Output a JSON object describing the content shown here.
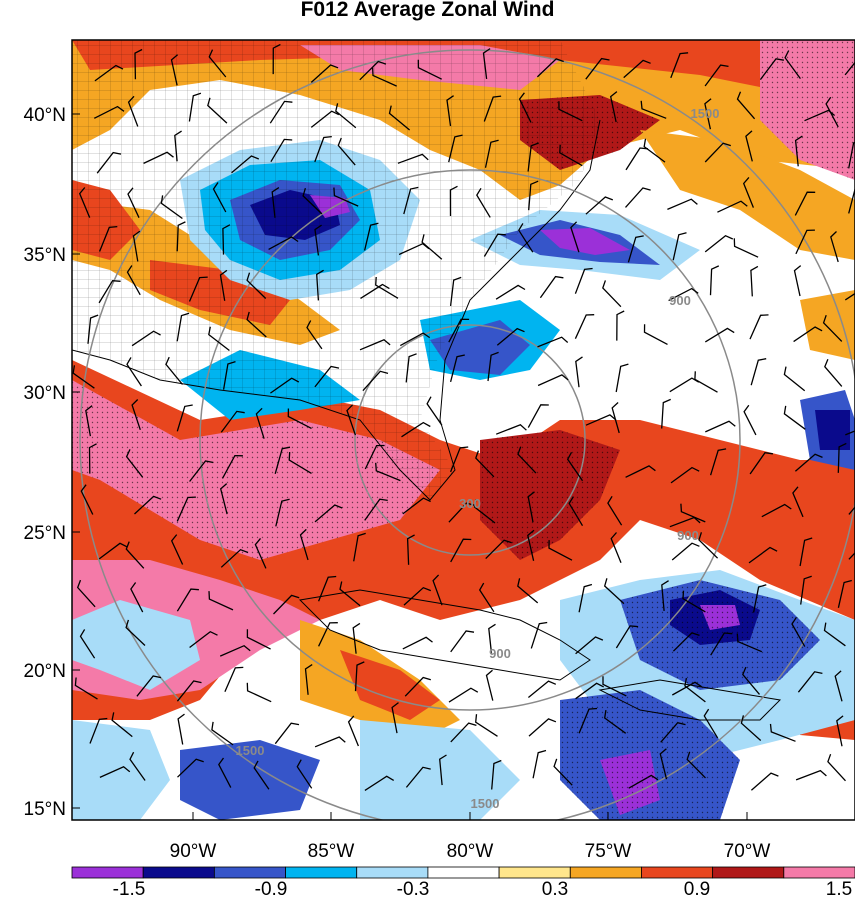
{
  "title": "F012 Average Zonal Wind",
  "map": {
    "lat_labels": [
      "40°N",
      "35°N",
      "30°N",
      "25°N",
      "20°N",
      "15°N"
    ],
    "lon_labels": [
      "90°W",
      "85°W",
      "80°W",
      "75°W",
      "70°W"
    ],
    "contour_labels": [
      "300",
      "900",
      "900",
      "900",
      "1500",
      "1500",
      "1500"
    ],
    "field_name": "Average Zonal Wind",
    "overlays": [
      "wind-barbs",
      "county-boundaries",
      "distance-range-rings",
      "significance-stippling"
    ]
  },
  "colorbar": {
    "levels": [
      "-1.5",
      "-0.9",
      "-0.3",
      "0.3",
      "0.9",
      "1.5"
    ],
    "colors": [
      "#9b30d8",
      "#0a0a8c",
      "#3655c9",
      "#00b4f0",
      "#a8dcf8",
      "#ffffff",
      "#ffe68c",
      "#f5a623",
      "#e8461e",
      "#b01818",
      "#f47aa8"
    ]
  }
}
